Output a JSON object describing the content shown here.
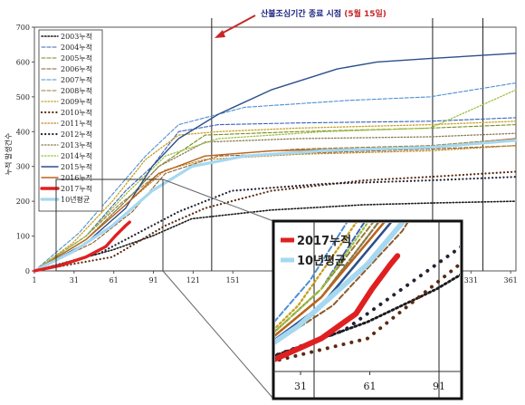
{
  "chart_data": {
    "type": "line",
    "ylabel": "누적 발생건수",
    "yticks": [
      0,
      100,
      200,
      300,
      400,
      500,
      600,
      700
    ],
    "xticks": [
      1,
      31,
      61,
      91,
      121,
      151,
      331,
      361
    ],
    "xlim": [
      1,
      365
    ],
    "ylim": [
      0,
      700
    ],
    "annotation": {
      "text_main": "산불조심기간 종료 시점 ",
      "text_accent": "(5월 15일)",
      "x": 135
    },
    "vlines": [
      135,
      302,
      340
    ],
    "series": [
      {
        "name": "2003누적",
        "color": "#1a1a1a",
        "style": "dotted",
        "width": 1.6,
        "points": [
          [
            1,
            0
          ],
          [
            60,
            60
          ],
          [
            90,
            100
          ],
          [
            120,
            150
          ],
          [
            180,
            175
          ],
          [
            250,
            190
          ],
          [
            300,
            195
          ],
          [
            365,
            200
          ]
        ]
      },
      {
        "name": "2004누적",
        "color": "#3a62b7",
        "style": "dashed",
        "width": 1.1,
        "points": [
          [
            1,
            0
          ],
          [
            40,
            100
          ],
          [
            70,
            230
          ],
          [
            90,
            300
          ],
          [
            110,
            400
          ],
          [
            140,
            420
          ],
          [
            200,
            425
          ],
          [
            300,
            430
          ],
          [
            365,
            440
          ]
        ]
      },
      {
        "name": "2005누적",
        "color": "#7a8a20",
        "style": "dashed",
        "width": 1.1,
        "points": [
          [
            1,
            0
          ],
          [
            40,
            90
          ],
          [
            70,
            200
          ],
          [
            95,
            300
          ],
          [
            130,
            390
          ],
          [
            200,
            400
          ],
          [
            300,
            410
          ],
          [
            365,
            420
          ]
        ]
      },
      {
        "name": "2006누적",
        "color": "#8b5a2b",
        "style": "dashed",
        "width": 1.1,
        "points": [
          [
            1,
            0
          ],
          [
            45,
            80
          ],
          [
            75,
            170
          ],
          [
            100,
            280
          ],
          [
            140,
            330
          ],
          [
            220,
            340
          ],
          [
            300,
            350
          ],
          [
            365,
            360
          ]
        ]
      },
      {
        "name": "2007누적",
        "color": "#4e8fd0",
        "style": "dashed",
        "width": 1.1,
        "points": [
          [
            1,
            0
          ],
          [
            35,
            110
          ],
          [
            60,
            220
          ],
          [
            85,
            330
          ],
          [
            110,
            420
          ],
          [
            160,
            470
          ],
          [
            240,
            490
          ],
          [
            300,
            500
          ],
          [
            365,
            540
          ]
        ]
      },
      {
        "name": "2008누적",
        "color": "#9a7a3a",
        "style": "dashed",
        "width": 1.1,
        "points": [
          [
            1,
            0
          ],
          [
            40,
            100
          ],
          [
            65,
            190
          ],
          [
            95,
            280
          ],
          [
            130,
            330
          ],
          [
            200,
            350
          ],
          [
            300,
            360
          ],
          [
            365,
            380
          ]
        ]
      },
      {
        "name": "2009누적",
        "color": "#c6a020",
        "style": "dotted",
        "width": 1.3,
        "points": [
          [
            1,
            0
          ],
          [
            30,
            80
          ],
          [
            60,
            200
          ],
          [
            85,
            320
          ],
          [
            110,
            390
          ],
          [
            140,
            400
          ],
          [
            200,
            410
          ],
          [
            300,
            420
          ],
          [
            365,
            430
          ]
        ]
      },
      {
        "name": "2010누적",
        "color": "#5a2a10",
        "style": "dotted",
        "width": 2.2,
        "points": [
          [
            1,
            0
          ],
          [
            60,
            40
          ],
          [
            100,
            130
          ],
          [
            130,
            180
          ],
          [
            180,
            230
          ],
          [
            250,
            260
          ],
          [
            300,
            270
          ],
          [
            365,
            285
          ]
        ]
      },
      {
        "name": "2011누적",
        "color": "#c08a2a",
        "style": "dotted",
        "width": 1.3,
        "points": [
          [
            1,
            0
          ],
          [
            40,
            90
          ],
          [
            70,
            190
          ],
          [
            100,
            290
          ],
          [
            130,
            320
          ],
          [
            200,
            335
          ],
          [
            300,
            345
          ],
          [
            365,
            360
          ]
        ]
      },
      {
        "name": "2012누적",
        "color": "#222233",
        "style": "dotted",
        "width": 2.2,
        "points": [
          [
            1,
            0
          ],
          [
            50,
            50
          ],
          [
            80,
            110
          ],
          [
            110,
            170
          ],
          [
            150,
            230
          ],
          [
            220,
            250
          ],
          [
            300,
            260
          ],
          [
            365,
            270
          ]
        ]
      },
      {
        "name": "2013누적",
        "color": "#8a7a50",
        "style": "dotted",
        "width": 1.3,
        "points": [
          [
            1,
            0
          ],
          [
            40,
            90
          ],
          [
            70,
            200
          ],
          [
            95,
            300
          ],
          [
            130,
            370
          ],
          [
            200,
            380
          ],
          [
            300,
            385
          ],
          [
            365,
            395
          ]
        ]
      },
      {
        "name": "2014누적",
        "color": "#9ac040",
        "style": "dotted",
        "width": 1.3,
        "points": [
          [
            1,
            0
          ],
          [
            40,
            100
          ],
          [
            70,
            220
          ],
          [
            100,
            330
          ],
          [
            140,
            380
          ],
          [
            220,
            400
          ],
          [
            300,
            410
          ],
          [
            365,
            520
          ]
        ]
      },
      {
        "name": "2015누적",
        "color": "#2c4f8a",
        "style": "solid",
        "width": 1.4,
        "points": [
          [
            1,
            0
          ],
          [
            40,
            80
          ],
          [
            70,
            180
          ],
          [
            90,
            300
          ],
          [
            110,
            380
          ],
          [
            140,
            450
          ],
          [
            180,
            520
          ],
          [
            230,
            580
          ],
          [
            260,
            600
          ],
          [
            300,
            610
          ],
          [
            365,
            625
          ]
        ]
      },
      {
        "name": "2016누적",
        "color": "#b8641f",
        "style": "solid",
        "width": 1.4,
        "points": [
          [
            1,
            0
          ],
          [
            40,
            90
          ],
          [
            70,
            190
          ],
          [
            95,
            280
          ],
          [
            130,
            330
          ],
          [
            180,
            345
          ],
          [
            240,
            350
          ],
          [
            300,
            355
          ],
          [
            365,
            380
          ]
        ]
      },
      {
        "name": "2017누적",
        "color": "#e02020",
        "style": "solid",
        "width": 3.4,
        "points": [
          [
            1,
            0
          ],
          [
            20,
            15
          ],
          [
            40,
            40
          ],
          [
            55,
            70
          ],
          [
            62,
            100
          ],
          [
            70,
            130
          ],
          [
            73,
            140
          ]
        ]
      },
      {
        "name": "10년평균",
        "color": "#a6d8f0",
        "style": "solid",
        "width": 3.2,
        "points": [
          [
            1,
            0
          ],
          [
            30,
            55
          ],
          [
            60,
            130
          ],
          [
            90,
            230
          ],
          [
            120,
            300
          ],
          [
            160,
            330
          ],
          [
            220,
            345
          ],
          [
            300,
            355
          ],
          [
            365,
            375
          ]
        ]
      }
    ]
  },
  "inset": {
    "legend": [
      "2017누적",
      "10년평균"
    ],
    "xticks": [
      31,
      61,
      91
    ],
    "window": {
      "x": [
        20,
        100
      ],
      "y": [
        0,
        180
      ]
    }
  }
}
